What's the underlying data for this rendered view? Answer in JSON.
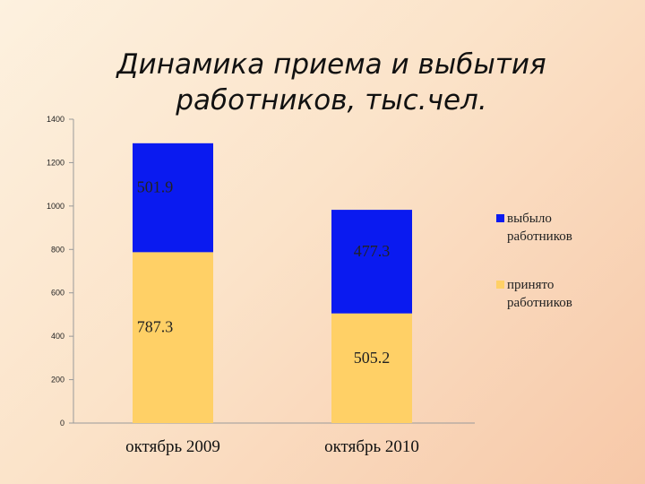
{
  "chart_data": {
    "type": "bar",
    "stacked": true,
    "title": "Динамика приема и выбытия\nработников, тыс.чел.",
    "categories": [
      "октябрь 2009",
      "октябрь 2010"
    ],
    "series": [
      {
        "name": "принято работников",
        "values": [
          787.3,
          505.2
        ],
        "color": "#FFD066"
      },
      {
        "name": "выбыло работников",
        "values": [
          501.9,
          477.3
        ],
        "color": "#0A1AF0"
      }
    ],
    "y_ticks": [
      0,
      200,
      400,
      600,
      800,
      1000,
      1200,
      1400
    ],
    "ylim": [
      0,
      1400
    ],
    "grid": false,
    "legend_position": "right"
  }
}
